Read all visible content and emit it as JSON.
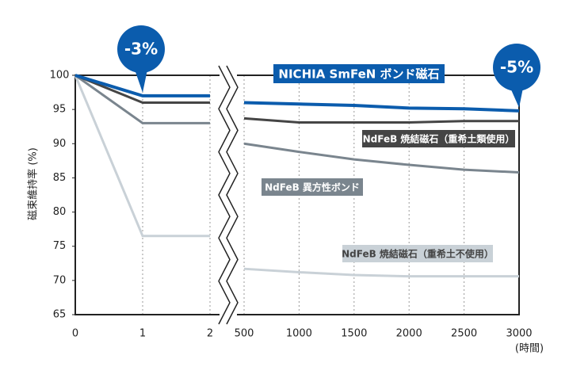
{
  "chart_data": {
    "type": "line",
    "ylabel": "磁束維持率 (%)",
    "xlabel": "(時間)",
    "ylim": [
      65,
      100
    ],
    "yticks": [
      65,
      70,
      75,
      80,
      85,
      90,
      95,
      100
    ],
    "x": [
      0,
      1,
      2,
      500,
      1000,
      1500,
      2000,
      2500,
      3000
    ],
    "panels": [
      {
        "xlim": [
          0,
          2
        ],
        "xticks": [
          0,
          1,
          2
        ]
      },
      {
        "xlim": [
          500,
          3000
        ],
        "xticks": [
          500,
          1000,
          1500,
          2000,
          2500,
          3000
        ]
      }
    ],
    "series": [
      {
        "name": "NICHIA SmFeN ボンド磁石",
        "color": "#0b5cad",
        "values": [
          100,
          97,
          97,
          96,
          95.8,
          95.6,
          95.2,
          95.1,
          94.8
        ]
      },
      {
        "name": "NdFeB 焼結磁石（重希土類使用）",
        "color": "#454545",
        "values": [
          100,
          96,
          96,
          93.7,
          93.1,
          93.1,
          93.1,
          93.3,
          93.3
        ]
      },
      {
        "name": "NdFeB 異方性ボンド",
        "color": "#7a858e",
        "values": [
          100,
          93,
          93,
          90,
          88.8,
          87.7,
          86.9,
          86.2,
          85.8
        ]
      },
      {
        "name": "NdFeB 焼結磁石（重希土不使用）",
        "color": "#c9d1d7",
        "values": [
          100,
          76.5,
          76.5,
          71.7,
          71.2,
          70.8,
          70.6,
          70.6,
          70.6
        ]
      }
    ],
    "annotations": [
      {
        "text": "-3%",
        "x": 1,
        "y": 97
      },
      {
        "text": "-5%",
        "x": 3000,
        "y": 94.8
      }
    ]
  }
}
